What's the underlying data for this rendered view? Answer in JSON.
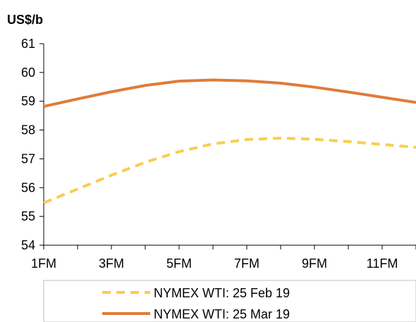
{
  "chart_data": {
    "type": "line",
    "ylabel": "US$/b",
    "xlabel": "",
    "ylim": [
      54,
      61
    ],
    "yticks": [
      54,
      55,
      56,
      57,
      58,
      59,
      60,
      61
    ],
    "x": [
      1,
      2,
      3,
      4,
      5,
      6,
      7,
      8,
      9,
      10,
      11,
      12
    ],
    "xticklabels": [
      "1FM",
      "3FM",
      "5FM",
      "7FM",
      "9FM",
      "11FM"
    ],
    "xtickpositions": [
      1,
      3,
      5,
      7,
      9,
      11
    ],
    "grid": false,
    "legend_position": "bottom",
    "series": [
      {
        "name": "NYMEX WTI: 25 Feb 19",
        "color": "#F9CD50",
        "style": "dashed",
        "values": [
          55.47,
          55.95,
          56.43,
          56.88,
          57.25,
          57.52,
          57.67,
          57.72,
          57.68,
          57.6,
          57.5,
          57.4
        ]
      },
      {
        "name": "NYMEX WTI: 25 Mar 19",
        "color": "#E07B39",
        "style": "solid",
        "values": [
          58.82,
          59.08,
          59.33,
          59.55,
          59.7,
          59.74,
          59.71,
          59.63,
          59.49,
          59.32,
          59.14,
          58.96
        ]
      }
    ]
  }
}
